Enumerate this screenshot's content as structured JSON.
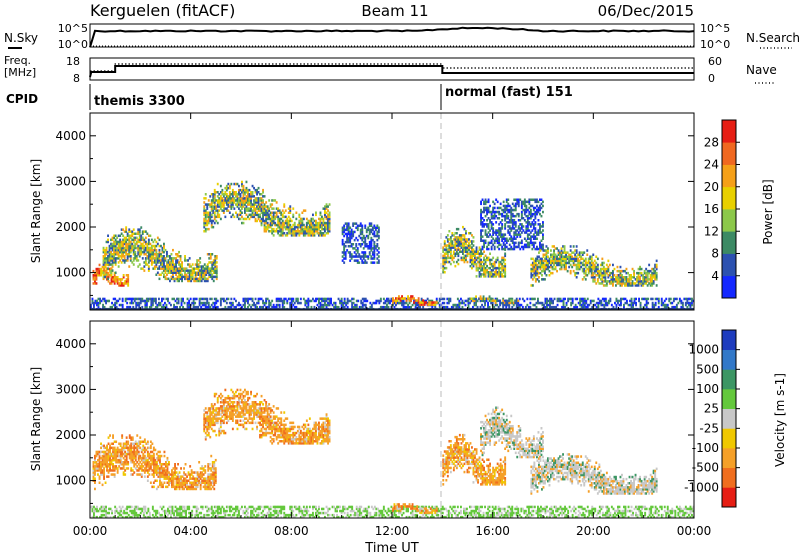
{
  "header": {
    "station": "Kerguelen (fitACF)",
    "beam": "Beam 11",
    "date": "06/Dec/2015"
  },
  "panels": {
    "nsky": {
      "left_label": "N.Sky",
      "right_label": "N.Search",
      "left_ticks": [
        "10^5",
        "10^0"
      ],
      "right_ticks": [
        "10^5",
        "10^0"
      ]
    },
    "freq": {
      "left_label_1": "Freq.",
      "left_label_2": "[MHz]",
      "right_label": "Nave",
      "left_ticks": [
        "18",
        "8"
      ],
      "right_ticks": [
        "60",
        "0"
      ]
    },
    "cpid": {
      "label": "CPID",
      "segments": [
        {
          "name": "themis 3300",
          "start_hour": 0
        },
        {
          "name": "normal (fast) 151",
          "start_hour": 14
        }
      ]
    }
  },
  "colors": {
    "power": [
      "#1428ff",
      "#2c51b0",
      "#3c8a64",
      "#8cc84a",
      "#e8d000",
      "#f5a018",
      "#f06820",
      "#e61e14"
    ],
    "velocity": [
      "#1e3cbe",
      "#3278c8",
      "#3c9664",
      "#64c83c",
      "#c8c8c8",
      "#f0c800",
      "#f5a028",
      "#f06e1e",
      "#e61e14"
    ]
  },
  "chart_data": [
    {
      "type": "heatmap",
      "ylabel": "Slant Range [km]",
      "xlabel": "Time UT",
      "x_ticks": [
        "00:00",
        "04:00",
        "08:00",
        "12:00",
        "16:00",
        "20:00",
        "00:00"
      ],
      "y_ticks": [
        "1000",
        "2000",
        "3000",
        "4000"
      ],
      "xlim_hours": [
        0,
        24
      ],
      "ylim_km": [
        180,
        4500
      ],
      "colorbar": {
        "label": "Power [dB]",
        "ticks": [
          "4",
          "8",
          "12",
          "16",
          "20",
          "24",
          "28"
        ],
        "range": [
          0,
          30
        ]
      },
      "echo_regions": [
        {
          "t_start": 0.0,
          "t_end": 24.0,
          "r_min": 180,
          "r_max": 450,
          "level": "low"
        },
        {
          "t_start": 0.1,
          "t_end": 1.5,
          "r_min": 700,
          "r_max": 1200,
          "level": "high"
        },
        {
          "t_start": 0.5,
          "t_end": 5.0,
          "r_min": 800,
          "r_max": 2000,
          "level": "mid"
        },
        {
          "t_start": 4.5,
          "t_end": 9.5,
          "r_min": 1800,
          "r_max": 3000,
          "level": "mid"
        },
        {
          "t_start": 10.0,
          "t_end": 11.5,
          "r_min": 1200,
          "r_max": 2100,
          "level": "low"
        },
        {
          "t_start": 12.0,
          "t_end": 13.8,
          "r_min": 280,
          "r_max": 500,
          "level": "high"
        },
        {
          "t_start": 14.0,
          "t_end": 16.5,
          "r_min": 900,
          "r_max": 2000,
          "level": "mid"
        },
        {
          "t_start": 15.5,
          "t_end": 18.0,
          "r_min": 1500,
          "r_max": 2600,
          "level": "low"
        },
        {
          "t_start": 17.5,
          "t_end": 22.5,
          "r_min": 700,
          "r_max": 1600,
          "level": "mid"
        },
        {
          "t_start": 15.0,
          "t_end": 17.0,
          "r_min": 320,
          "r_max": 480,
          "level": "mid"
        }
      ]
    },
    {
      "type": "heatmap",
      "ylabel": "Slant Range [km]",
      "xlabel": "Time UT",
      "x_ticks": [
        "00:00",
        "04:00",
        "08:00",
        "12:00",
        "16:00",
        "20:00",
        "00:00"
      ],
      "y_ticks": [
        "1000",
        "2000",
        "3000",
        "4000"
      ],
      "xlim_hours": [
        0,
        24
      ],
      "ylim_km": [
        180,
        4500
      ],
      "colorbar": {
        "label": "Velocity [m s-1]",
        "ticks": [
          "1000",
          "500",
          "100",
          "25",
          "-25",
          "-100",
          "-500",
          "-1000"
        ],
        "range": [
          1000,
          -1000
        ]
      },
      "echo_regions": [
        {
          "t_start": 0.0,
          "t_end": 24.0,
          "r_min": 180,
          "r_max": 450,
          "level": "green"
        },
        {
          "t_start": 0.1,
          "t_end": 5.0,
          "r_min": 800,
          "r_max": 2000,
          "level": "neg"
        },
        {
          "t_start": 4.5,
          "t_end": 9.5,
          "r_min": 1800,
          "r_max": 3000,
          "level": "neg"
        },
        {
          "t_start": 12.0,
          "t_end": 13.8,
          "r_min": 280,
          "r_max": 500,
          "level": "neg"
        },
        {
          "t_start": 14.0,
          "t_end": 16.5,
          "r_min": 900,
          "r_max": 2000,
          "level": "neg"
        },
        {
          "t_start": 15.5,
          "t_end": 18.0,
          "r_min": 1500,
          "r_max": 2600,
          "level": "gray"
        },
        {
          "t_start": 17.5,
          "t_end": 22.5,
          "r_min": 700,
          "r_max": 1600,
          "level": "gray"
        }
      ]
    }
  ]
}
